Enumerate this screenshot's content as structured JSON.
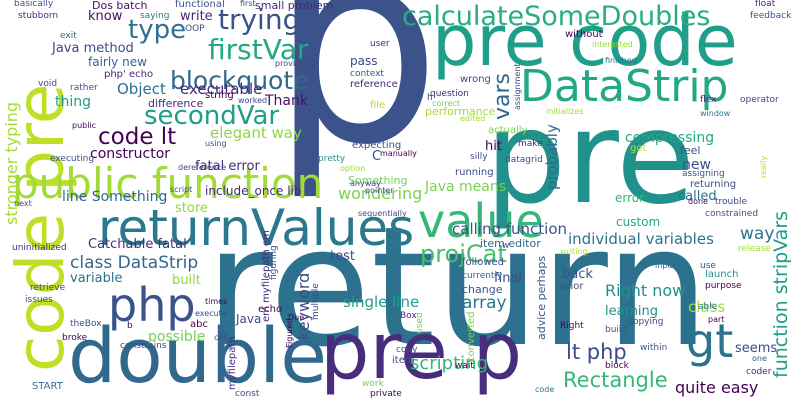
{
  "words": [
    {
      "text": "p",
      "color": "#3b528b"
    },
    {
      "text": "return",
      "color": "#2c728e"
    },
    {
      "text": "pre",
      "color": "#21918c"
    },
    {
      "text": "pre code",
      "color": "#1f9e89"
    },
    {
      "text": "code pre",
      "color": "#bddf26"
    },
    {
      "text": "double",
      "color": "#31688e"
    },
    {
      "text": "pre p",
      "color": "#472d7b"
    },
    {
      "text": "returnValues",
      "color": "#2a788e"
    },
    {
      "text": "public function",
      "color": "#a2da37"
    },
    {
      "text": "DataStrip",
      "color": "#22a884"
    },
    {
      "text": "php",
      "color": "#3b528b"
    },
    {
      "text": "value",
      "color": "#35b779"
    },
    {
      "text": "gt",
      "color": "#2c728e"
    },
    {
      "text": "calculateSomeDoubles",
      "color": "#28ae80"
    },
    {
      "text": "firstVar",
      "color": "#22a884"
    },
    {
      "text": "secondVar",
      "color": "#1f9e89"
    },
    {
      "text": "trying",
      "color": "#3b528b"
    },
    {
      "text": "type",
      "color": "#2c728e"
    },
    {
      "text": "blockquote",
      "color": "#31688e"
    },
    {
      "text": "code lt",
      "color": "#440154"
    },
    {
      "text": "vars",
      "color": "#31688e"
    },
    {
      "text": "projCat",
      "color": "#44bf70"
    },
    {
      "text": "Rectangle",
      "color": "#35b779"
    },
    {
      "text": "lt php",
      "color": "#3e4a89"
    },
    {
      "text": "function stripVars",
      "color": "#1f9e89"
    },
    {
      "text": "stronger typing",
      "color": "#a5db36"
    },
    {
      "text": "Java method",
      "color": "#3e4a89"
    },
    {
      "text": "constructor",
      "color": "#440154"
    },
    {
      "text": "elegant way",
      "color": "#8fd744"
    },
    {
      "text": "class DataStrip",
      "color": "#31688e"
    },
    {
      "text": "Catchable fatal",
      "color": "#472d7b"
    },
    {
      "text": "individual variables",
      "color": "#2c728e"
    },
    {
      "text": "Java means",
      "color": "#7ad151"
    },
    {
      "text": "calling function",
      "color": "#3b528b"
    },
    {
      "text": "scripting",
      "color": "#35b779"
    },
    {
      "text": "quite easy",
      "color": "#440154"
    },
    {
      "text": "possible",
      "color": "#75d054"
    },
    {
      "text": "Right now",
      "color": "#21918c"
    },
    {
      "text": "single line",
      "color": "#1f9e89"
    },
    {
      "text": "compressing",
      "color": "#22a884"
    },
    {
      "text": "Something",
      "color": "#6ece58"
    },
    {
      "text": "Object",
      "color": "#2c728e"
    },
    {
      "text": "wondering",
      "color": "#7ad151"
    },
    {
      "text": "keyword",
      "color": "#3e4a89"
    },
    {
      "text": "probably",
      "color": "#31688e"
    },
    {
      "text": "executable",
      "color": "#482878"
    },
    {
      "text": "Thank",
      "color": "#471063"
    },
    {
      "text": "fatal error",
      "color": "#482878"
    },
    {
      "text": "include_once lib",
      "color": "#472d7b"
    },
    {
      "text": "line Something",
      "color": "#31688e"
    },
    {
      "text": "store",
      "color": "#93d741"
    },
    {
      "text": "built",
      "color": "#8fd744"
    },
    {
      "text": "variable",
      "color": "#2c728e"
    },
    {
      "text": "class",
      "color": "#a5db36"
    },
    {
      "text": "array",
      "color": "#2a788e"
    },
    {
      "text": "way",
      "color": "#2c728e"
    },
    {
      "text": "new",
      "color": "#3b528b"
    },
    {
      "text": "seems",
      "color": "#3e4a89"
    },
    {
      "text": "write",
      "color": "#482878"
    },
    {
      "text": "know",
      "color": "#471063"
    },
    {
      "text": "thing",
      "color": "#1f9e89"
    },
    {
      "text": "item editor",
      "color": "#31688e"
    },
    {
      "text": "learning",
      "color": "#21918c"
    },
    {
      "text": "called",
      "color": "#2c728e"
    },
    {
      "text": "test",
      "color": "#3e4a89"
    },
    {
      "text": "final",
      "color": "#3e4a89"
    },
    {
      "text": "back",
      "color": "#3b528b"
    },
    {
      "text": "error",
      "color": "#35b779"
    },
    {
      "text": "hit",
      "color": "#440154"
    },
    {
      "text": "custom",
      "color": "#22a884"
    },
    {
      "text": "Dos batch",
      "color": "#471063"
    },
    {
      "text": "saying",
      "color": "#2a788e"
    },
    {
      "text": "functional",
      "color": "#3b528b"
    },
    {
      "text": "small problem",
      "color": "#482878"
    },
    {
      "text": "basically",
      "color": "#3b528b"
    },
    {
      "text": "stubborn",
      "color": "#472d7b"
    },
    {
      "text": "exit",
      "color": "#31688e"
    },
    {
      "text": "void",
      "color": "#3e4a89"
    },
    {
      "text": "OOP",
      "color": "#3b528b"
    },
    {
      "text": "php' echo",
      "color": "#482878"
    },
    {
      "text": "fairly new",
      "color": "#31688e"
    },
    {
      "text": "difference",
      "color": "#482878"
    },
    {
      "text": "string",
      "color": "#440154"
    },
    {
      "text": "worked",
      "color": "#3e4a89"
    },
    {
      "text": "pass",
      "color": "#3e4a89"
    },
    {
      "text": "context",
      "color": "#3b528b"
    },
    {
      "text": "reference",
      "color": "#482878"
    },
    {
      "text": "file",
      "color": "#b5de2b"
    },
    {
      "text": "question",
      "color": "#482878"
    },
    {
      "text": "correct",
      "color": "#7ad151"
    },
    {
      "text": "performance",
      "color": "#a5db36"
    },
    {
      "text": "wrong",
      "color": "#3e4a89"
    },
    {
      "text": "actually",
      "color": "#75d054"
    },
    {
      "text": "make",
      "color": "#472d7b"
    },
    {
      "text": "manually",
      "color": "#440154"
    },
    {
      "text": "silly",
      "color": "#3e4a89"
    },
    {
      "text": "datagrid",
      "color": "#3e4a89"
    },
    {
      "text": "running",
      "color": "#3e4a89"
    },
    {
      "text": "expecting",
      "color": "#3b528b"
    },
    {
      "text": "user",
      "color": "#482878"
    },
    {
      "text": "without",
      "color": "#440154"
    },
    {
      "text": "finished",
      "color": "#2a788e"
    },
    {
      "text": "interested",
      "color": "#95d840"
    },
    {
      "text": "feedback",
      "color": "#3b528b"
    },
    {
      "text": "float",
      "color": "#482878"
    },
    {
      "text": "flex",
      "color": "#482878"
    },
    {
      "text": "operator",
      "color": "#3e4a89"
    },
    {
      "text": "window",
      "color": "#2a788e"
    },
    {
      "text": "feel",
      "color": "#3b528b"
    },
    {
      "text": "assigning",
      "color": "#3b528b"
    },
    {
      "text": "returning",
      "color": "#3e4a89"
    },
    {
      "text": "got",
      "color": "#bddf26"
    },
    {
      "text": "really",
      "color": "#b5de2b"
    },
    {
      "text": "done",
      "color": "#471063"
    },
    {
      "text": "trouble",
      "color": "#3e4a89"
    },
    {
      "text": "constrained",
      "color": "#3b528b"
    },
    {
      "text": "launch",
      "color": "#21918c"
    },
    {
      "text": "purpose",
      "color": "#440154"
    },
    {
      "text": "able",
      "color": "#2a788e"
    },
    {
      "text": "part",
      "color": "#440154"
    },
    {
      "text": "use",
      "color": "#3b528b"
    },
    {
      "text": "writing",
      "color": "#bddf26"
    },
    {
      "text": "input",
      "color": "#2c728e"
    },
    {
      "text": "release",
      "color": "#a5db36"
    },
    {
      "text": "followed",
      "color": "#3e4a89"
    },
    {
      "text": "currently",
      "color": "#31688e"
    },
    {
      "text": "change",
      "color": "#3b528b"
    },
    {
      "text": "prior",
      "color": "#3e4a89"
    },
    {
      "text": "copying",
      "color": "#3e4a89"
    },
    {
      "text": "block",
      "color": "#440154"
    },
    {
      "text": "converted",
      "color": "#7ad151"
    },
    {
      "text": "advice perhaps",
      "color": "#3b528b"
    },
    {
      "text": "Right",
      "color": "#440154"
    },
    {
      "text": "Box",
      "color": "#482878"
    },
    {
      "text": "wait",
      "color": "#440154"
    },
    {
      "text": "item",
      "color": "#3e4a89"
    },
    {
      "text": "copy",
      "color": "#3b528b"
    },
    {
      "text": "build",
      "color": "#3b528b"
    },
    {
      "text": "code",
      "color": "#2c728e"
    },
    {
      "text": "within",
      "color": "#3b528b"
    },
    {
      "text": "one",
      "color": "#3b528b"
    },
    {
      "text": "coder",
      "color": "#482878"
    },
    {
      "text": "work",
      "color": "#7ad151"
    },
    {
      "text": "private",
      "color": "#440154"
    },
    {
      "text": "const",
      "color": "#3e4a89"
    },
    {
      "text": "START",
      "color": "#2c728e"
    },
    {
      "text": "issues",
      "color": "#3e4a89"
    },
    {
      "text": "retrieve",
      "color": "#3b528b"
    },
    {
      "text": "theBox",
      "color": "#3b528b"
    },
    {
      "text": "broke",
      "color": "#440154"
    },
    {
      "text": "constrains",
      "color": "#3e4a89"
    },
    {
      "text": "uninitialized",
      "color": "#472d7b"
    },
    {
      "text": "executing",
      "color": "#3b528b"
    },
    {
      "text": "next",
      "color": "#3e4a89"
    },
    {
      "text": "rather",
      "color": "#3b528b"
    },
    {
      "text": "public",
      "color": "#440154"
    },
    {
      "text": "figuring",
      "color": "#3e4a89"
    },
    {
      "text": "Due",
      "color": "#440154"
    },
    {
      "text": "multiple",
      "color": "#3e4a89"
    },
    {
      "text": "sequentially",
      "color": "#3e4a89"
    },
    {
      "text": "pointer",
      "color": "#3e4a89"
    },
    {
      "text": "anyway",
      "color": "#3e4a89"
    },
    {
      "text": "option",
      "color": "#a5db36"
    },
    {
      "text": "pretty",
      "color": "#21918c"
    },
    {
      "text": "using",
      "color": "#3e4a89"
    },
    {
      "text": "echo",
      "color": "#440154"
    },
    {
      "text": "Java",
      "color": "#3e4a89"
    },
    {
      "text": "abc",
      "color": "#440154"
    },
    {
      "text": "em myfilepath em",
      "color": "#472d7b"
    },
    {
      "text": "myfilepath",
      "color": "#472d7b"
    },
    {
      "text": "cell",
      "color": "#3e4a89"
    },
    {
      "text": "times",
      "color": "#440154"
    },
    {
      "text": "execute",
      "color": "#3e4a89"
    },
    {
      "text": "Figured",
      "color": "#440154"
    },
    {
      "text": "dereference",
      "color": "#3e4a89"
    },
    {
      "text": "script",
      "color": "#3e4a89"
    },
    {
      "text": "used",
      "color": "#7ad151"
    },
    {
      "text": "first",
      "color": "#3e4a89"
    },
    {
      "text": "provided",
      "color": "#3e4a89"
    },
    {
      "text": "edited",
      "color": "#a5db36"
    },
    {
      "text": "initializes",
      "color": "#a5db36"
    },
    {
      "text": "assignment",
      "color": "#3e4a89"
    },
    {
      "text": "b",
      "color": "#440154"
    },
    {
      "text": "h",
      "color": "#3e4a89"
    },
    {
      "text": "w",
      "color": "#3e4a89"
    },
    {
      "text": "C",
      "color": "#3e4a89"
    }
  ]
}
